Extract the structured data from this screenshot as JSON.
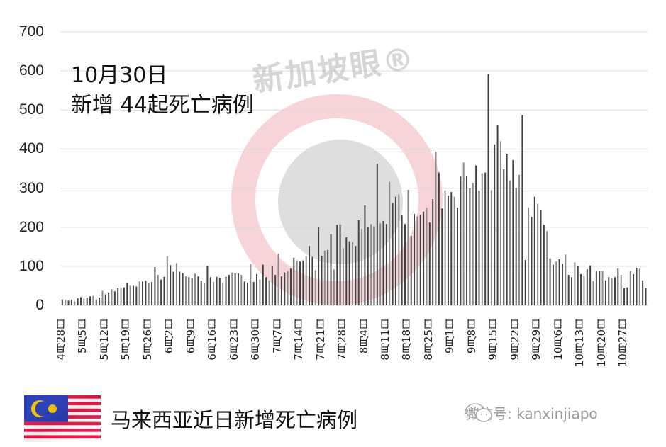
{
  "headline": {
    "date": "10月30日",
    "summary": "新增 44起死亡病例"
  },
  "watermark": "新加坡眼®",
  "legend": {
    "label": "马来西亚近日新增死亡病例",
    "flag_icon": "malaysia-flag-icon"
  },
  "credit": {
    "icon": "wechat-icon",
    "text": "微信号: kanxinjiapo"
  },
  "colors": {
    "bar": "#404040",
    "bar_alt": "#8a8a8a",
    "grid": "#d9d9d9",
    "watermark_red": "#f4c6ca",
    "watermark_gray": "#c8c8c8"
  },
  "chart_data": {
    "type": "bar",
    "title": "马来西亚近日新增死亡病例",
    "annotation": "10月30日 新增 44起死亡病例",
    "xlabel": "",
    "ylabel": "",
    "ylim": [
      0,
      700
    ],
    "yticks": [
      0,
      100,
      200,
      300,
      400,
      500,
      600,
      700
    ],
    "grid": true,
    "legend_position": "bottom-left",
    "xtick_labels": [
      "4月28日",
      "5月5日",
      "5月12日",
      "5月19日",
      "5月26日",
      "6月2日",
      "6月9日",
      "6月16日",
      "6月23日",
      "6月30日",
      "7月7日",
      "7月14日",
      "7月21日",
      "7月28日",
      "8月4日",
      "8月11日",
      "8月18日",
      "8月25日",
      "9月1日",
      "9月8日",
      "9月15日",
      "9月22日",
      "9月29日",
      "10月6日",
      "10月13日",
      "10月20日",
      "10月27日"
    ],
    "start_date": "4月28日",
    "end_date": "10月30日",
    "values": [
      15,
      14,
      12,
      14,
      10,
      18,
      21,
      17,
      20,
      23,
      24,
      15,
      20,
      37,
      28,
      33,
      41,
      36,
      44,
      46,
      46,
      57,
      50,
      50,
      48,
      61,
      61,
      63,
      56,
      60,
      98,
      78,
      66,
      73,
      126,
      103,
      86,
      108,
      86,
      82,
      74,
      72,
      70,
      81,
      74,
      63,
      56,
      101,
      72,
      60,
      73,
      71,
      58,
      73,
      78,
      84,
      82,
      82,
      78,
      61,
      58,
      106,
      60,
      80,
      66,
      104,
      72,
      64,
      100,
      78,
      132,
      74,
      84,
      88,
      94,
      122,
      115,
      112,
      115,
      126,
      152,
      124,
      90,
      200,
      127,
      140,
      142,
      182,
      92,
      206,
      207,
      146,
      174,
      164,
      162,
      152,
      218,
      196,
      256,
      200,
      208,
      202,
      362,
      210,
      216,
      208,
      316,
      262,
      278,
      284,
      230,
      208,
      296,
      178,
      234,
      228,
      232,
      240,
      250,
      212,
      272,
      394,
      340,
      248,
      294,
      281,
      290,
      278,
      250,
      330,
      366,
      332,
      300,
      313,
      358,
      294,
      338,
      340,
      592,
      295,
      412,
      462,
      420,
      348,
      388,
      320,
      372,
      300,
      334,
      487,
      116,
      250,
      226,
      278,
      260,
      245,
      206,
      190,
      120,
      104,
      112,
      118,
      106,
      130,
      78,
      72,
      110,
      100,
      80,
      74,
      92,
      102,
      62,
      88,
      88,
      88,
      64,
      72,
      70,
      72,
      94,
      78,
      44,
      46,
      88,
      80,
      96,
      94,
      64,
      44
    ]
  }
}
